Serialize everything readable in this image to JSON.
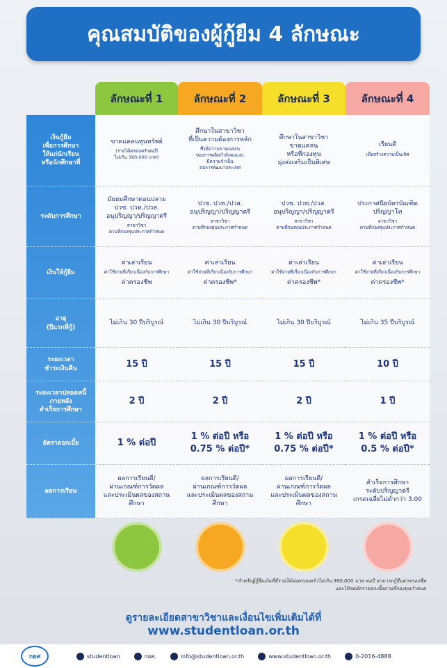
{
  "title": "คุณสมบัติของผู้กู้ยืม 4 ลักษณะ",
  "columns": [
    "ลักษณะที่ 1",
    "ลักษณะที่ 2",
    "ลักษณะที่ 3",
    "ลักษณะที่ 4"
  ],
  "rows": [
    {
      "label": "เงินกู้ยืม\nเพื่อการศึกษา\nให้แก่นักเรียน\nหรือนักศึกษาที่",
      "cells": [
        [
          {
            "text": "ขาดแคลนทุนทรัพย์",
            "size": "main"
          },
          {
            "text": "(รายได้ครอบครัวต่อปี\nไม่เกิน 360,000 บาท)",
            "size": "note"
          }
        ],
        [
          {
            "text": "ศึกษาในสาขาวิชา\nที่เป็นความต้องการหลัก",
            "size": "main"
          },
          {
            "text": "ซึ่งมีความขาดแคลน\nของการผลิตกำลังคนและ\nมีความจำเป็น\nต่อการพัฒนาประเทศ",
            "size": "note"
          }
        ],
        [
          {
            "text": "ศึกษาในสาขาวิชา\nขาดแคลน\nหรือที่กองทุน\nมุ่งส่งเสริมเป็นพิเศษ",
            "size": "main"
          }
        ],
        [
          {
            "text": "เรียนดี",
            "size": "main"
          },
          {
            "text": "เพื่อสร้างความเป็นเลิศ",
            "size": "note"
          }
        ]
      ]
    },
    {
      "label": "ระดับการศึกษา",
      "cells": [
        [
          {
            "text": "มัธยมศึกษาตอนปลาย\nปวช. ปวท./ปวส.\nอนุปริญญา/ปริญญาตรี",
            "size": "main"
          },
          {
            "text": "สาขาวิชา\nตามที่กองทุนประกาศกำหนด",
            "size": "note"
          }
        ],
        [
          {
            "text": "ปวช. ปวท./ปวส.\nอนุปริญญา/ปริญญาตรี",
            "size": "main"
          },
          {
            "text": "สาขาวิชา\nตามที่กองทุนประกาศกำหนด",
            "size": "note"
          }
        ],
        [
          {
            "text": "ปวช. ปวท./ปวส.\nอนุปริญญา/ปริญญาตรี",
            "size": "main"
          },
          {
            "text": "สาขาวิชา\nตามที่กองทุนประกาศกำหนด",
            "size": "note"
          }
        ],
        [
          {
            "text": "ประกาศนียบัตรบัณฑิต\nปริญญาโท",
            "size": "main"
          },
          {
            "text": "สาขาวิชา\nตามที่กองทุนประกาศกำหนด",
            "size": "note"
          }
        ]
      ]
    },
    {
      "label": "เงินให้กู้ยืม",
      "cells": [
        [
          {
            "text": "ค่าเล่าเรียน",
            "size": "main"
          },
          {
            "text": "ค่าใช้จ่ายที่เกี่ยวเนื่องกับการศึกษา",
            "size": "note"
          },
          {
            "text": "ค่าครองชีพ",
            "size": "main"
          }
        ],
        [
          {
            "text": "ค่าเล่าเรียน",
            "size": "main"
          },
          {
            "text": "ค่าใช้จ่ายที่เกี่ยวเนื่องกับการศึกษา",
            "size": "note"
          },
          {
            "text": "ค่าครองชีพ*",
            "size": "main"
          }
        ],
        [
          {
            "text": "ค่าเล่าเรียน",
            "size": "main"
          },
          {
            "text": "ค่าใช้จ่ายที่เกี่ยวเนื่องกับการศึกษา",
            "size": "note"
          },
          {
            "text": "ค่าครองชีพ*",
            "size": "main"
          }
        ],
        [
          {
            "text": "ค่าเล่าเรียน",
            "size": "main"
          },
          {
            "text": "ค่าใช้จ่ายที่เกี่ยวเนื่องกับการศึกษา",
            "size": "note"
          },
          {
            "text": "ค่าครองชีพ*",
            "size": "main"
          }
        ]
      ]
    },
    {
      "label": "อายุ\n(ปีแรกที่กู้)",
      "cells": [
        [
          {
            "text": "ไม่เกิน 30 ปีบริบูรณ์",
            "size": "main"
          }
        ],
        [
          {
            "text": "ไม่เกิน 30 ปีบริบูรณ์",
            "size": "main"
          }
        ],
        [
          {
            "text": "ไม่เกิน 30 ปีบริบูรณ์",
            "size": "main"
          }
        ],
        [
          {
            "text": "ไม่เกิน 35 ปีบริบูรณ์",
            "size": "main"
          }
        ]
      ]
    },
    {
      "label": "ระยะเวลา\nชำระเงินคืน",
      "cells": [
        [
          {
            "text": "15 ปี",
            "size": "big"
          }
        ],
        [
          {
            "text": "15 ปี",
            "size": "big"
          }
        ],
        [
          {
            "text": "15 ปี",
            "size": "big"
          }
        ],
        [
          {
            "text": "10 ปี",
            "size": "big"
          }
        ]
      ]
    },
    {
      "label": "ระยะเวลาปลอดหนี้\nภายหลัง\nสำเร็จการศึกษา",
      "cells": [
        [
          {
            "text": "2 ปี",
            "size": "big"
          }
        ],
        [
          {
            "text": "2 ปี",
            "size": "big"
          }
        ],
        [
          {
            "text": "2 ปี",
            "size": "big"
          }
        ],
        [
          {
            "text": "1 ปี",
            "size": "big"
          }
        ]
      ]
    },
    {
      "label": "อัตราดอกเบี้ย",
      "cells": [
        [
          {
            "text": "1 % ต่อปี",
            "size": "big"
          }
        ],
        [
          {
            "text": "1 % ต่อปี หรือ\n0.75 % ต่อปี*",
            "size": "big"
          }
        ],
        [
          {
            "text": "1 % ต่อปี หรือ\n0.75 % ต่อปี*",
            "size": "big"
          }
        ],
        [
          {
            "text": "1 % ต่อปี หรือ\n0.5 % ต่อปี*",
            "size": "big"
          }
        ]
      ]
    },
    {
      "label": "ผลการเรียน",
      "cells": [
        [
          {
            "text": "ผลการเรียนดี/\nผ่านเกณฑ์การวัดผล\nและประเมินผลของสถานศึกษา",
            "size": "main"
          }
        ],
        [
          {
            "text": "ผลการเรียนดี/\nผ่านเกณฑ์การวัดผล\nและประเมินผลของสถานศึกษา",
            "size": "main"
          }
        ],
        [
          {
            "text": "ผลการเรียนดี/\nผ่านเกณฑ์การวัดผล\nและประเมินผลของสถานศึกษา",
            "size": "main"
          }
        ],
        [
          {
            "text": "สำเร็จการศึกษา\nระดับปริญญาตรี\nเกรดเฉลี่ยไม่ต่ำกว่า 3.00",
            "size": "main"
          }
        ]
      ]
    }
  ],
  "footnote": "*สำหรับผู้กู้ยืมเงินที่มีรายได้ต่อครอบครัวไม่เกิน 360,000 บาท ต่อปี สามารถกู้ยืมค่าครองชีพ\nและได้ลดอัตราดอกเบี้ยตามที่กองทุนกำหนด",
  "more_info": {
    "text": "ดูรายละเอียดสาขาวิชาและเงื่อนไขเพิ่มเติมได้ที่",
    "url": "www.studentloan.or.th"
  },
  "footer": {
    "logo": "กยศ",
    "items": [
      "studentloan",
      "กยศ.",
      "info@studentloan.or.th",
      "www.studentloan.or.th",
      "0-2016-4888"
    ]
  }
}
